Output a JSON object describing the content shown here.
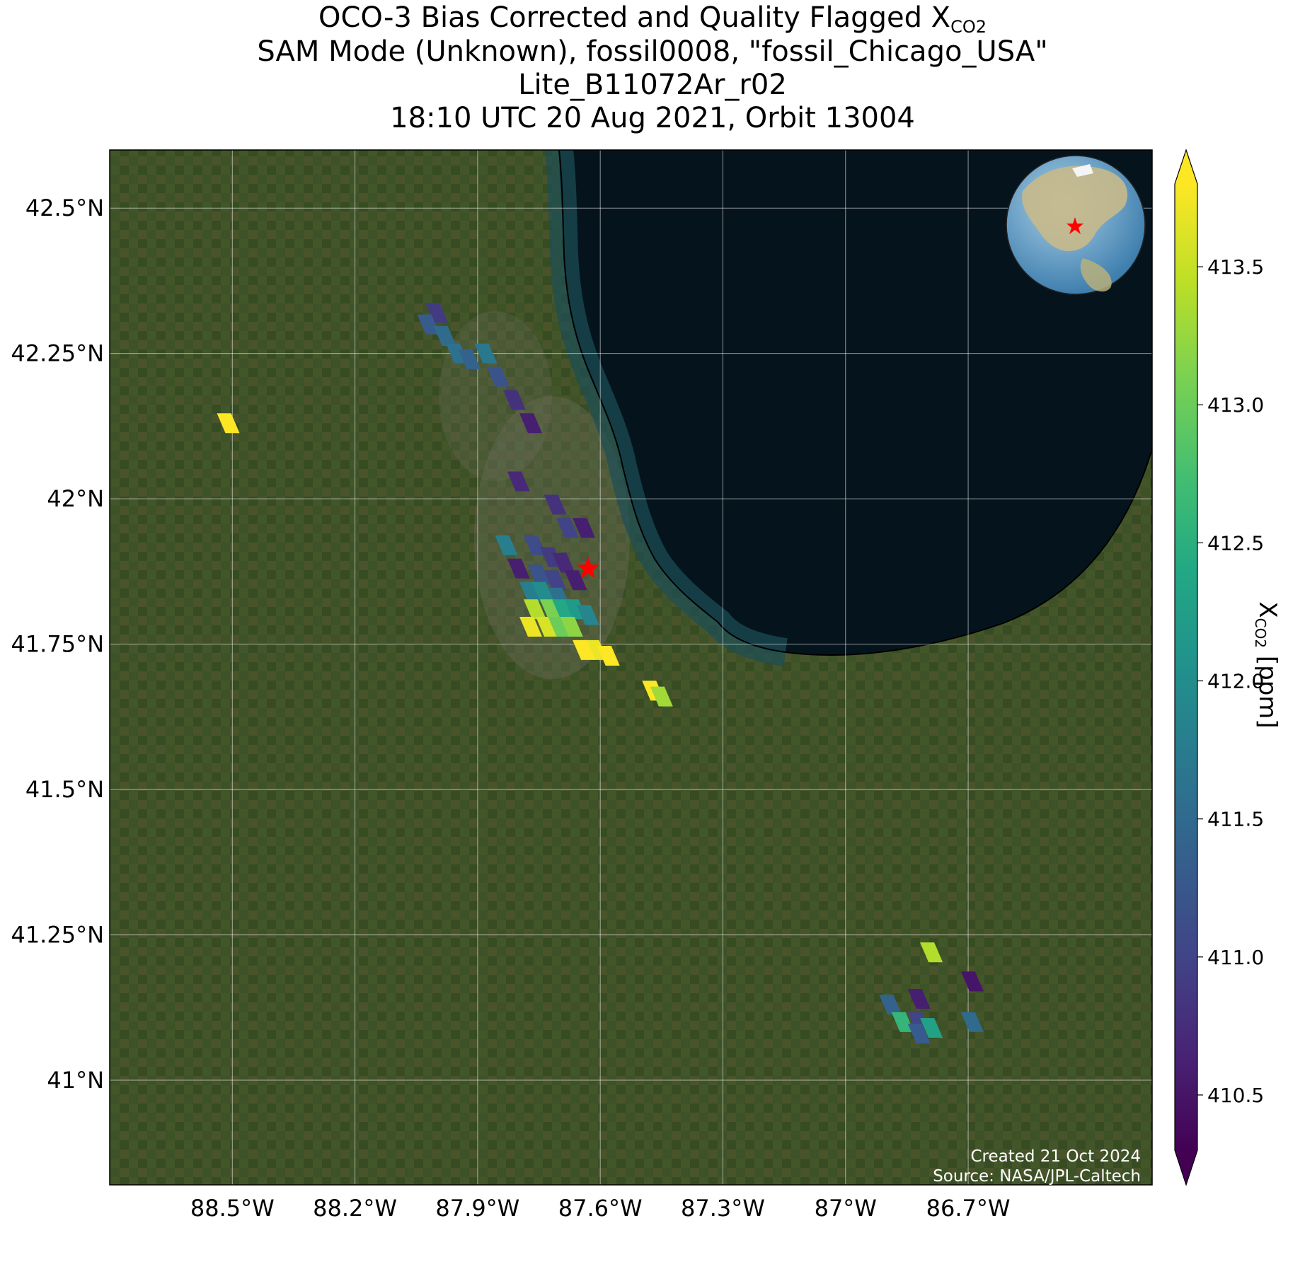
{
  "title": {
    "line1_prefix": "OCO-3 Bias Corrected and Quality Flagged X",
    "line1_sub": "CO2",
    "line2": "SAM Mode (Unknown), fossil0008, \"fossil_Chicago_USA\"",
    "line3": "Lite_B11072Ar_r02",
    "line4": "18:10 UTC 20 Aug 2021, Orbit 13004"
  },
  "map": {
    "lon_range": [
      -88.8,
      -86.25
    ],
    "lat_range": [
      40.82,
      42.6
    ],
    "lon_ticks": [
      {
        "value": -88.5,
        "label": "88.5°W"
      },
      {
        "value": -88.2,
        "label": "88.2°W"
      },
      {
        "value": -87.9,
        "label": "87.9°W"
      },
      {
        "value": -87.6,
        "label": "87.6°W"
      },
      {
        "value": -87.3,
        "label": "87.3°W"
      },
      {
        "value": -87.0,
        "label": "87°W"
      },
      {
        "value": -86.7,
        "label": "86.7°W"
      }
    ],
    "lat_ticks": [
      {
        "value": 42.5,
        "label": "42.5°N"
      },
      {
        "value": 42.25,
        "label": "42.25°N"
      },
      {
        "value": 42.0,
        "label": "42°N"
      },
      {
        "value": 41.75,
        "label": "41.75°N"
      },
      {
        "value": 41.5,
        "label": "41.5°N"
      },
      {
        "value": 41.25,
        "label": "41.25°N"
      },
      {
        "value": 41.0,
        "label": "41°N"
      }
    ],
    "target": {
      "name": "fossil_Chicago_USA",
      "lon": -87.63,
      "lat": 41.88,
      "marker_color": "#ff0000"
    },
    "land_color": "#3d5226",
    "water_color": "#05141c",
    "grid": true,
    "inset_globe": true
  },
  "colorbar": {
    "title_prefix": "X",
    "title_sub": "CO2",
    "title_suffix": " [ppm]",
    "min": 410.3,
    "max": 413.8,
    "ticks": [
      {
        "value": 410.5,
        "label": "410.5"
      },
      {
        "value": 411.0,
        "label": "411.0"
      },
      {
        "value": 411.5,
        "label": "411.5"
      },
      {
        "value": 412.0,
        "label": "412.0"
      },
      {
        "value": 412.5,
        "label": "412.5"
      },
      {
        "value": 413.0,
        "label": "413.0"
      },
      {
        "value": 413.5,
        "label": "413.5"
      }
    ],
    "colormap": "viridis",
    "extend": "both"
  },
  "credits": {
    "created": "Created 21 Oct 2024",
    "source": "Source: NASA/JPL-Caltech"
  },
  "chart_data": {
    "type": "scatter",
    "projection": "geographic",
    "variable": "XCO2 (ppm)",
    "points": [
      {
        "lon": -88.51,
        "lat": 42.13,
        "xco2": 413.8
      },
      {
        "lon": -88.0,
        "lat": 42.32,
        "xco2": 410.9
      },
      {
        "lon": -88.02,
        "lat": 42.3,
        "xco2": 411.3
      },
      {
        "lon": -87.98,
        "lat": 42.28,
        "xco2": 411.5
      },
      {
        "lon": -87.95,
        "lat": 42.25,
        "xco2": 411.6
      },
      {
        "lon": -87.92,
        "lat": 42.24,
        "xco2": 411.4
      },
      {
        "lon": -87.88,
        "lat": 42.25,
        "xco2": 411.7
      },
      {
        "lon": -87.85,
        "lat": 42.21,
        "xco2": 411.2
      },
      {
        "lon": -87.81,
        "lat": 42.17,
        "xco2": 410.8
      },
      {
        "lon": -87.77,
        "lat": 42.13,
        "xco2": 410.6
      },
      {
        "lon": -87.8,
        "lat": 42.03,
        "xco2": 410.7
      },
      {
        "lon": -87.71,
        "lat": 41.99,
        "xco2": 410.8
      },
      {
        "lon": -87.68,
        "lat": 41.95,
        "xco2": 411.0
      },
      {
        "lon": -87.64,
        "lat": 41.95,
        "xco2": 410.6
      },
      {
        "lon": -87.83,
        "lat": 41.92,
        "xco2": 411.8
      },
      {
        "lon": -87.8,
        "lat": 41.88,
        "xco2": 410.6
      },
      {
        "lon": -87.76,
        "lat": 41.92,
        "xco2": 411.1
      },
      {
        "lon": -87.72,
        "lat": 41.9,
        "xco2": 410.9
      },
      {
        "lon": -87.69,
        "lat": 41.89,
        "xco2": 410.7
      },
      {
        "lon": -87.66,
        "lat": 41.86,
        "xco2": 410.6
      },
      {
        "lon": -87.75,
        "lat": 41.87,
        "xco2": 411.2
      },
      {
        "lon": -87.71,
        "lat": 41.86,
        "xco2": 411.0
      },
      {
        "lon": -87.77,
        "lat": 41.84,
        "xco2": 411.8
      },
      {
        "lon": -87.74,
        "lat": 41.84,
        "xco2": 412.0
      },
      {
        "lon": -87.7,
        "lat": 41.83,
        "xco2": 411.6
      },
      {
        "lon": -87.76,
        "lat": 41.81,
        "xco2": 413.4
      },
      {
        "lon": -87.72,
        "lat": 41.81,
        "xco2": 413.1
      },
      {
        "lon": -87.69,
        "lat": 41.81,
        "xco2": 412.4
      },
      {
        "lon": -87.66,
        "lat": 41.81,
        "xco2": 412.2
      },
      {
        "lon": -87.63,
        "lat": 41.8,
        "xco2": 411.9
      },
      {
        "lon": -87.77,
        "lat": 41.78,
        "xco2": 413.7
      },
      {
        "lon": -87.73,
        "lat": 41.78,
        "xco2": 413.6
      },
      {
        "lon": -87.7,
        "lat": 41.78,
        "xco2": 413.0
      },
      {
        "lon": -87.67,
        "lat": 41.78,
        "xco2": 413.2
      },
      {
        "lon": -87.61,
        "lat": 41.74,
        "xco2": 413.7
      },
      {
        "lon": -87.64,
        "lat": 41.74,
        "xco2": 413.8
      },
      {
        "lon": -87.58,
        "lat": 41.73,
        "xco2": 413.8
      },
      {
        "lon": -87.47,
        "lat": 41.67,
        "xco2": 413.8
      },
      {
        "lon": -87.45,
        "lat": 41.66,
        "xco2": 413.3
      },
      {
        "lon": -86.79,
        "lat": 41.22,
        "xco2": 413.4
      },
      {
        "lon": -86.69,
        "lat": 41.17,
        "xco2": 410.5
      },
      {
        "lon": -86.82,
        "lat": 41.14,
        "xco2": 410.6
      },
      {
        "lon": -86.89,
        "lat": 41.13,
        "xco2": 411.4
      },
      {
        "lon": -86.86,
        "lat": 41.1,
        "xco2": 412.6
      },
      {
        "lon": -86.82,
        "lat": 41.1,
        "xco2": 411.0
      },
      {
        "lon": -86.79,
        "lat": 41.09,
        "xco2": 412.3
      },
      {
        "lon": -86.82,
        "lat": 41.08,
        "xco2": 411.3
      },
      {
        "lon": -86.69,
        "lat": 41.1,
        "xco2": 411.5
      }
    ]
  }
}
